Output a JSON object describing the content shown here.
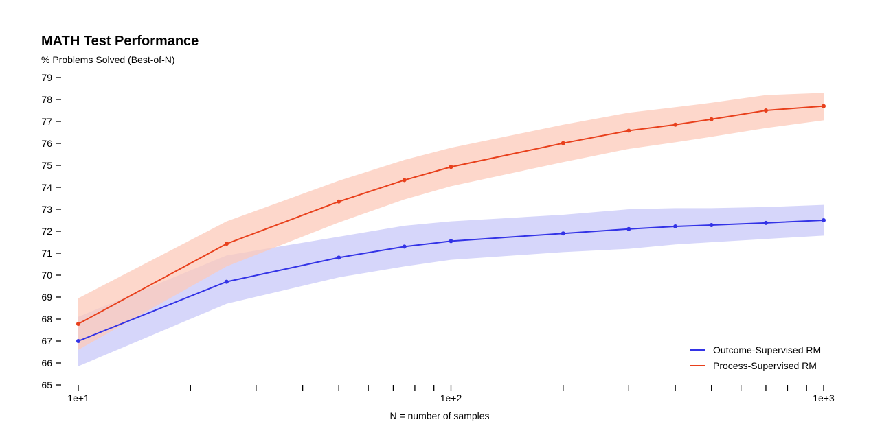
{
  "chart_data": {
    "type": "line",
    "title": "MATH Test Performance",
    "ylabel": "% Problems Solved (Best-of-N)",
    "xlabel": "N = number of samples",
    "xscale": "log",
    "xlim": [
      10,
      1000
    ],
    "ylim": [
      65,
      79
    ],
    "yticks": [
      65,
      66,
      67,
      68,
      69,
      70,
      71,
      72,
      73,
      74,
      75,
      76,
      77,
      78,
      79
    ],
    "xticks_labeled": [
      {
        "value": 10,
        "label": "1e+1"
      },
      {
        "value": 100,
        "label": "1e+2"
      },
      {
        "value": 1000,
        "label": "1e+3"
      }
    ],
    "xticks_minor": [
      20,
      30,
      40,
      50,
      60,
      70,
      80,
      90,
      200,
      300,
      400,
      500,
      600,
      700,
      800,
      900
    ],
    "legend_position": "bottom-right",
    "series": [
      {
        "name": "Outcome-Supervised RM",
        "color": "#3333e6",
        "band_color": "#c8c8f8",
        "x": [
          10,
          25,
          50,
          75,
          100,
          200,
          300,
          400,
          500,
          700,
          1000
        ],
        "y": [
          67.0,
          69.7,
          70.8,
          71.3,
          71.55,
          71.9,
          72.1,
          72.22,
          72.28,
          72.38,
          72.5
        ],
        "upper": [
          68.1,
          70.9,
          71.75,
          72.25,
          72.45,
          72.75,
          73.0,
          73.05,
          73.05,
          73.1,
          73.2
        ],
        "lower": [
          65.85,
          68.7,
          69.9,
          70.4,
          70.7,
          71.05,
          71.2,
          71.4,
          71.5,
          71.65,
          71.8
        ]
      },
      {
        "name": "Process-Supervised RM",
        "color": "#e8401c",
        "band_color": "#fccaba",
        "x": [
          10,
          25,
          50,
          75,
          100,
          200,
          300,
          400,
          500,
          700,
          1000
        ],
        "y": [
          67.78,
          71.43,
          73.35,
          74.33,
          74.93,
          76.01,
          76.58,
          76.85,
          77.1,
          77.5,
          77.7
        ],
        "upper": [
          68.95,
          72.45,
          74.3,
          75.25,
          75.8,
          76.85,
          77.4,
          77.65,
          77.85,
          78.2,
          78.3
        ],
        "lower": [
          66.6,
          70.4,
          72.4,
          73.45,
          74.05,
          75.15,
          75.75,
          76.05,
          76.3,
          76.7,
          77.05
        ]
      }
    ]
  }
}
